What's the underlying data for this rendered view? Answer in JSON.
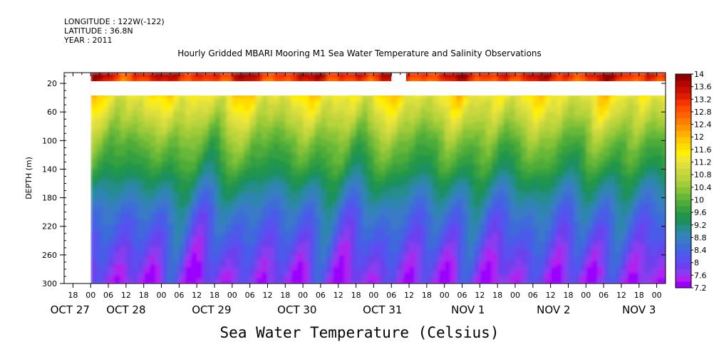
{
  "meta": {
    "longitude": "LONGITUDE : 122W(-122)",
    "latitude": "LATITUDE : 36.8N",
    "year": "YEAR : 2011"
  },
  "chart_data": {
    "type": "heatmap",
    "title": "Hourly Gridded MBARI Mooring M1 Sea Water Temperature and Salinity Observations",
    "xlabel": "Sea Water Temperature (Celsius)",
    "ylabel": "DEPTH (m)",
    "x_unit": "hours",
    "xlim": [
      -9,
      195
    ],
    "ylim": [
      300,
      5
    ],
    "y_ticks": [
      20,
      60,
      100,
      140,
      180,
      220,
      260,
      300
    ],
    "x_ticks": [
      {
        "h": -6,
        "label": "18"
      },
      {
        "h": 0,
        "label": "00"
      },
      {
        "h": 6,
        "label": "06"
      },
      {
        "h": 12,
        "label": "12"
      },
      {
        "h": 18,
        "label": "18"
      },
      {
        "h": 24,
        "label": "00"
      },
      {
        "h": 30,
        "label": "06"
      },
      {
        "h": 36,
        "label": "12"
      },
      {
        "h": 42,
        "label": "18"
      },
      {
        "h": 48,
        "label": "00"
      },
      {
        "h": 54,
        "label": "06"
      },
      {
        "h": 60,
        "label": "12"
      },
      {
        "h": 66,
        "label": "18"
      },
      {
        "h": 72,
        "label": "00"
      },
      {
        "h": 78,
        "label": "06"
      },
      {
        "h": 84,
        "label": "12"
      },
      {
        "h": 90,
        "label": "18"
      },
      {
        "h": 96,
        "label": "00"
      },
      {
        "h": 102,
        "label": "06"
      },
      {
        "h": 108,
        "label": "12"
      },
      {
        "h": 114,
        "label": "18"
      },
      {
        "h": 120,
        "label": "00"
      },
      {
        "h": 126,
        "label": "06"
      },
      {
        "h": 132,
        "label": "12"
      },
      {
        "h": 138,
        "label": "18"
      },
      {
        "h": 144,
        "label": "00"
      },
      {
        "h": 150,
        "label": "06"
      },
      {
        "h": 156,
        "label": "12"
      },
      {
        "h": 162,
        "label": "18"
      },
      {
        "h": 168,
        "label": "00"
      },
      {
        "h": 174,
        "label": "06"
      },
      {
        "h": 180,
        "label": "12"
      },
      {
        "h": 186,
        "label": "18"
      },
      {
        "h": 192,
        "label": "00"
      }
    ],
    "dates": [
      {
        "h": -7,
        "label": "OCT 27"
      },
      {
        "h": 12,
        "label": "OCT 28"
      },
      {
        "h": 41,
        "label": "OCT 29"
      },
      {
        "h": 70,
        "label": "OCT 30"
      },
      {
        "h": 99,
        "label": "OCT 31"
      },
      {
        "h": 128,
        "label": "NOV  1"
      },
      {
        "h": 157,
        "label": "NOV  2"
      },
      {
        "h": 186,
        "label": "NOV  3"
      }
    ],
    "colorbar": {
      "min": 7.2,
      "max": 14.2,
      "step": 0.2,
      "labels": [
        "14",
        "13.6",
        "13.2",
        "12.8",
        "12.4",
        "12",
        "11.6",
        "11.2",
        "10.8",
        "10.4",
        "10",
        "9.6",
        "9.2",
        "8.8",
        "8.4",
        "8",
        "7.6",
        "7.2"
      ],
      "colors": [
        "#9b00ff",
        "#b020f0",
        "#8a3cf0",
        "#6c40ee",
        "#5a4ff0",
        "#4a5ce8",
        "#3d6cd8",
        "#3a7ac8",
        "#2f86b0",
        "#278c8c",
        "#1e9060",
        "#21964a",
        "#34a040",
        "#4dac38",
        "#66b838",
        "#86c238",
        "#a0cc38",
        "#b8d43a",
        "#cad83c",
        "#dde03c",
        "#f0e830",
        "#fff000",
        "#ffdc00",
        "#ffc800",
        "#ffb000",
        "#ff9600",
        "#ff7c00",
        "#ff6400",
        "#ff4c00",
        "#f53200",
        "#e01c00",
        "#c81000",
        "#b00800",
        "#900000"
      ]
    },
    "no_data": [
      {
        "h0": -9,
        "h1": 0,
        "d0": 5,
        "d1": 300
      },
      {
        "h0": 0,
        "h1": 195,
        "d0": 17,
        "d1": 37
      },
      {
        "h0": 102,
        "h1": 107,
        "d0": 5,
        "d1": 17
      }
    ],
    "profile": [
      {
        "d": 5,
        "t": 13.6
      },
      {
        "d": 17,
        "t": 13.0
      },
      {
        "d": 37,
        "t": 11.4
      },
      {
        "d": 60,
        "t": 11.0
      },
      {
        "d": 80,
        "t": 10.6
      },
      {
        "d": 100,
        "t": 10.2
      },
      {
        "d": 120,
        "t": 9.9
      },
      {
        "d": 140,
        "t": 9.6
      },
      {
        "d": 160,
        "t": 9.2
      },
      {
        "d": 180,
        "t": 8.9
      },
      {
        "d": 200,
        "t": 8.6
      },
      {
        "d": 220,
        "t": 8.4
      },
      {
        "d": 240,
        "t": 8.2
      },
      {
        "d": 260,
        "t": 8.0
      },
      {
        "d": 280,
        "t": 7.8
      },
      {
        "d": 300,
        "t": 7.6
      }
    ]
  }
}
